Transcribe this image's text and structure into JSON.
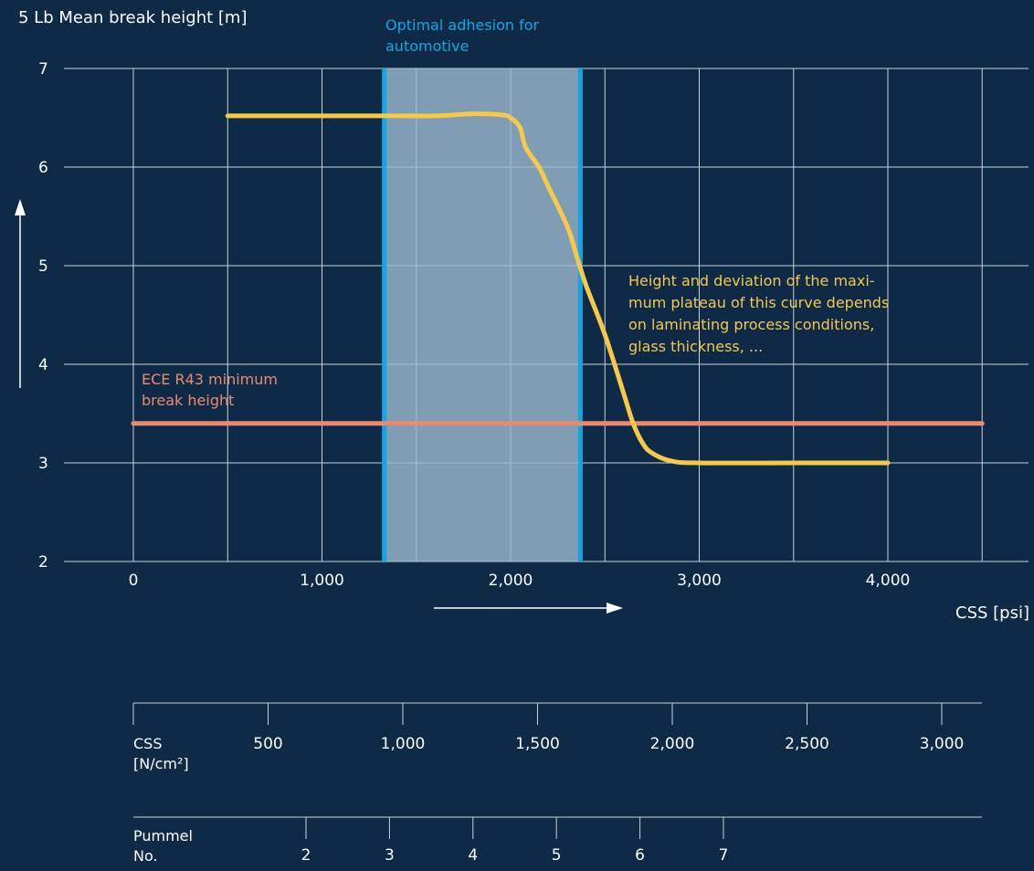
{
  "colors": {
    "background": "#0e2a47",
    "grid": "#c9d2dc",
    "text": "#ffffff",
    "curve": "#f7c94a",
    "threshold": "#ec8a6e",
    "band_line": "#12a7e3",
    "band_fill": "#9cbacf"
  },
  "chart_data": {
    "type": "line",
    "ylabel": "5 Lb Mean break height [m]",
    "xlabel": "CSS [psi]",
    "ylim": [
      2,
      7
    ],
    "xlim": [
      -400,
      4500
    ],
    "y_ticks": [
      "2",
      "3",
      "4",
      "5",
      "6",
      "7"
    ],
    "x_ticks": [
      {
        "value": 0,
        "label": "0"
      },
      {
        "value": 1000,
        "label": "1,000"
      },
      {
        "value": 2000,
        "label": "2,000"
      },
      {
        "value": 3000,
        "label": "3,000"
      },
      {
        "value": 4000,
        "label": "4,000"
      }
    ],
    "grid": true,
    "series": [
      {
        "x": [
          500,
          1000,
          1300,
          1600,
          1800,
          1950,
          2000,
          2050,
          2080,
          2150,
          2200,
          2300,
          2350,
          2400,
          2500,
          2600,
          2650,
          2700,
          2750,
          2850,
          3000,
          3500,
          4000
        ],
        "y": [
          6.52,
          6.52,
          6.52,
          6.52,
          6.54,
          6.53,
          6.5,
          6.4,
          6.2,
          6.0,
          5.8,
          5.4,
          5.1,
          4.8,
          4.3,
          3.7,
          3.4,
          3.2,
          3.1,
          3.02,
          3.0,
          3.0,
          3.0
        ]
      }
    ],
    "threshold": {
      "y": 3.4,
      "x_range": [
        0,
        4500
      ],
      "label": [
        "ECE R43 minimum",
        "break height"
      ]
    },
    "band": {
      "x_range": [
        1330,
        2370
      ],
      "y_range": [
        2,
        7
      ],
      "label": [
        "Optimal adhesion for",
        "automotive"
      ]
    },
    "annotation": [
      "Height and deviation of the maxi-",
      "mum plateau of this curve depends",
      "on laminating process conditions,",
      "glass thickness, ..."
    ],
    "secondary_axes": [
      {
        "label": [
          "CSS",
          "[N/cm²]"
        ],
        "ticks": [
          {
            "value": 500,
            "label": "500"
          },
          {
            "value": 1000,
            "label": "1,000"
          },
          {
            "value": 1500,
            "label": "1,500"
          },
          {
            "value": 2000,
            "label": "2,000"
          },
          {
            "value": 2500,
            "label": "2,500"
          },
          {
            "value": 3000,
            "label": "3,000"
          }
        ]
      },
      {
        "label": [
          "Pummel",
          "No."
        ],
        "ticks": [
          {
            "value": 2,
            "label": "2"
          },
          {
            "value": 3,
            "label": "3"
          },
          {
            "value": 4,
            "label": "4"
          },
          {
            "value": 5,
            "label": "5"
          },
          {
            "value": 6,
            "label": "6"
          },
          {
            "value": 7,
            "label": "7"
          }
        ]
      }
    ]
  }
}
